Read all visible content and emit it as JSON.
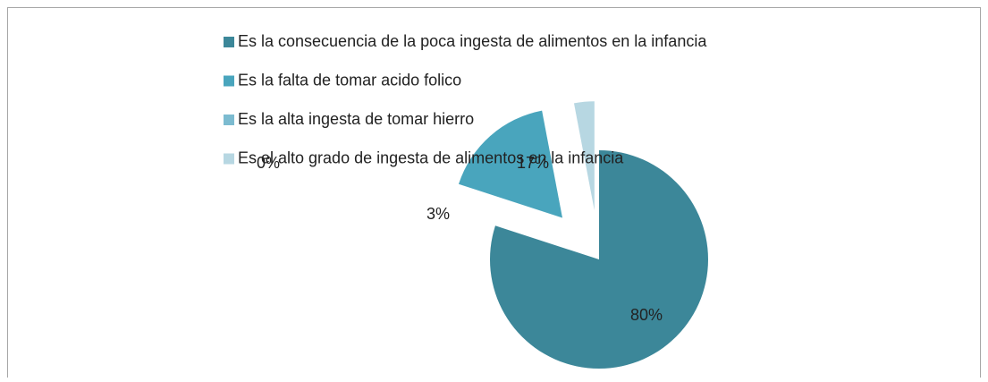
{
  "chart_data": {
    "type": "pie",
    "categories": [
      "Es la consecuencia de la poca ingesta de alimentos en la infancia",
      "Es la falta de tomar acido folico",
      "Es la alta ingesta de tomar hierro",
      "Es el alto grado de ingesta de alimentos en la infancia"
    ],
    "values": [
      80,
      17,
      0,
      3
    ],
    "value_labels": [
      "80%",
      "17%",
      "0%",
      "3%"
    ],
    "colors": [
      "#3c8799",
      "#49a5bd",
      "#7cbbd0",
      "#b7d7e2"
    ],
    "legend": "top"
  }
}
